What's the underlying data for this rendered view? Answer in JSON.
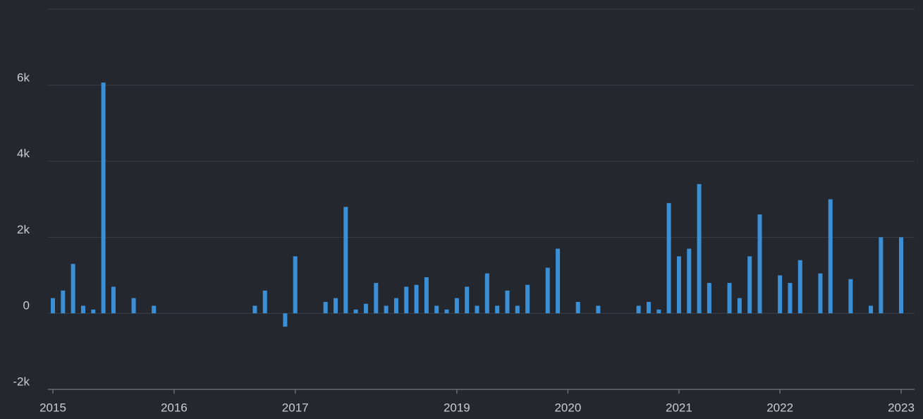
{
  "chart_data": {
    "type": "bar",
    "color": "#3a8fd6",
    "grid": true,
    "categories": [
      "2015",
      null,
      null,
      null,
      null,
      null,
      null,
      null,
      null,
      null,
      null,
      null,
      "2016",
      null,
      null,
      null,
      null,
      null,
      null,
      null,
      null,
      null,
      null,
      null,
      "2017",
      null,
      null,
      null,
      null,
      null,
      null,
      null,
      null,
      null,
      null,
      null,
      null,
      null,
      null,
      null,
      "2019",
      null,
      null,
      null,
      null,
      null,
      null,
      null,
      null,
      null,
      null,
      "2020",
      null,
      null,
      null,
      null,
      null,
      null,
      null,
      null,
      null,
      null,
      "2021",
      null,
      null,
      null,
      null,
      null,
      null,
      null,
      null,
      null,
      "2022",
      null,
      null,
      null,
      null,
      null,
      null,
      null,
      null,
      null,
      null,
      null,
      "2023"
    ],
    "values": [
      400,
      600,
      1300,
      200,
      100,
      6070,
      700,
      null,
      400,
      null,
      200,
      null,
      null,
      null,
      null,
      null,
      null,
      null,
      null,
      null,
      200,
      600,
      null,
      -350,
      1500,
      null,
      null,
      300,
      400,
      2800,
      100,
      250,
      800,
      200,
      400,
      700,
      750,
      950,
      200,
      100,
      400,
      700,
      200,
      1050,
      200,
      600,
      200,
      750,
      null,
      1200,
      1700,
      null,
      300,
      null,
      200,
      null,
      null,
      null,
      200,
      300,
      100,
      2900,
      1500,
      1700,
      3400,
      800,
      null,
      800,
      400,
      1500,
      2600,
      null,
      1000,
      800,
      1400,
      null,
      1050,
      3000,
      null,
      900,
      null,
      200,
      2000,
      null,
      2000
    ],
    "ylim": [
      -2000,
      8000
    ],
    "yticks": [
      {
        "value": -2000,
        "label": "-2k"
      },
      0,
      {
        "value": 2000,
        "label": "2k"
      },
      {
        "value": 4000,
        "label": "4k"
      },
      {
        "value": 6000,
        "label": "6k"
      }
    ]
  }
}
